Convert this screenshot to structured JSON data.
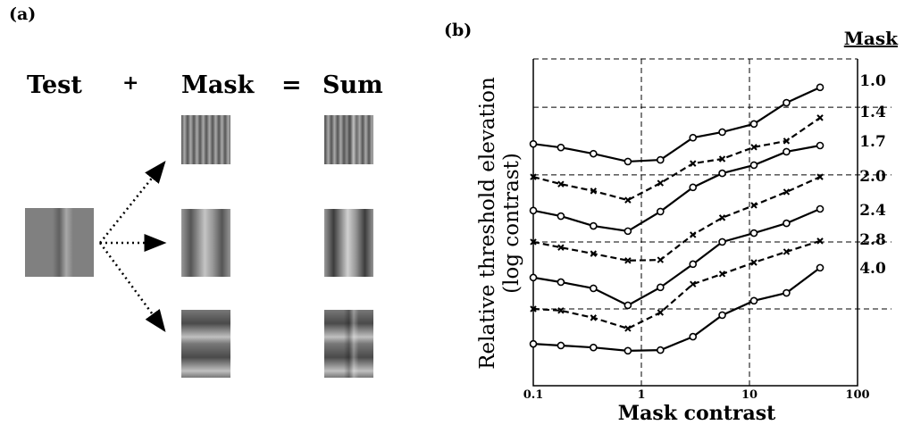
{
  "panel_a": {
    "label": "(a)",
    "test": "Test",
    "plus": "+",
    "mask": "Mask",
    "equals": "=",
    "sum": "Sum"
  },
  "chart_data": {
    "type": "line",
    "label": "(b)",
    "legend_title": "Mask",
    "xlabel": "Mask contrast",
    "ylabel": [
      "Relative threshold elevation",
      "(log contrast)"
    ],
    "xscale": "log",
    "xlim": [
      0.1,
      100
    ],
    "xticks": [
      0.1,
      1,
      10,
      100
    ],
    "ylim": [
      0,
      10
    ],
    "ygrid": [
      8.52,
      6.45,
      4.4,
      2.35
    ],
    "grid": true,
    "x": [
      0.1,
      0.18,
      0.36,
      0.75,
      1.5,
      3,
      5.6,
      11,
      22,
      45
    ],
    "series": [
      {
        "name": "1.0",
        "color": "#000000",
        "marker": "circle",
        "dashed": false,
        "values": [
          7.4,
          7.29,
          7.1,
          6.86,
          6.91,
          7.59,
          7.76,
          8.01,
          8.66,
          9.13
        ]
      },
      {
        "name": "1.4",
        "color": "#000000",
        "marker": "x",
        "dashed": true,
        "values": [
          6.39,
          6.17,
          5.96,
          5.68,
          6.2,
          6.8,
          6.94,
          7.3,
          7.49,
          8.2
        ]
      },
      {
        "name": "1.7",
        "color": "#000000",
        "marker": "circle",
        "dashed": false,
        "values": [
          5.36,
          5.19,
          4.89,
          4.73,
          5.33,
          6.07,
          6.5,
          6.75,
          7.16,
          7.35
        ]
      },
      {
        "name": "2.0",
        "color": "#000000",
        "marker": "x",
        "dashed": true,
        "values": [
          4.4,
          4.23,
          4.04,
          3.83,
          3.85,
          4.62,
          5.14,
          5.52,
          5.93,
          6.39
        ]
      },
      {
        "name": "2.4",
        "color": "#000000",
        "marker": "circle",
        "dashed": false,
        "values": [
          3.31,
          3.17,
          2.98,
          2.46,
          3.01,
          3.72,
          4.4,
          4.67,
          4.97,
          5.41
        ]
      },
      {
        "name": "2.8",
        "color": "#000000",
        "marker": "x",
        "dashed": true,
        "values": [
          2.35,
          2.3,
          2.08,
          1.75,
          2.24,
          3.11,
          3.42,
          3.77,
          4.1,
          4.43
        ]
      },
      {
        "name": "4.0",
        "color": "#000000",
        "marker": "circle",
        "dashed": false,
        "values": [
          1.28,
          1.23,
          1.17,
          1.07,
          1.09,
          1.5,
          2.16,
          2.6,
          2.84,
          3.61
        ]
      }
    ]
  }
}
